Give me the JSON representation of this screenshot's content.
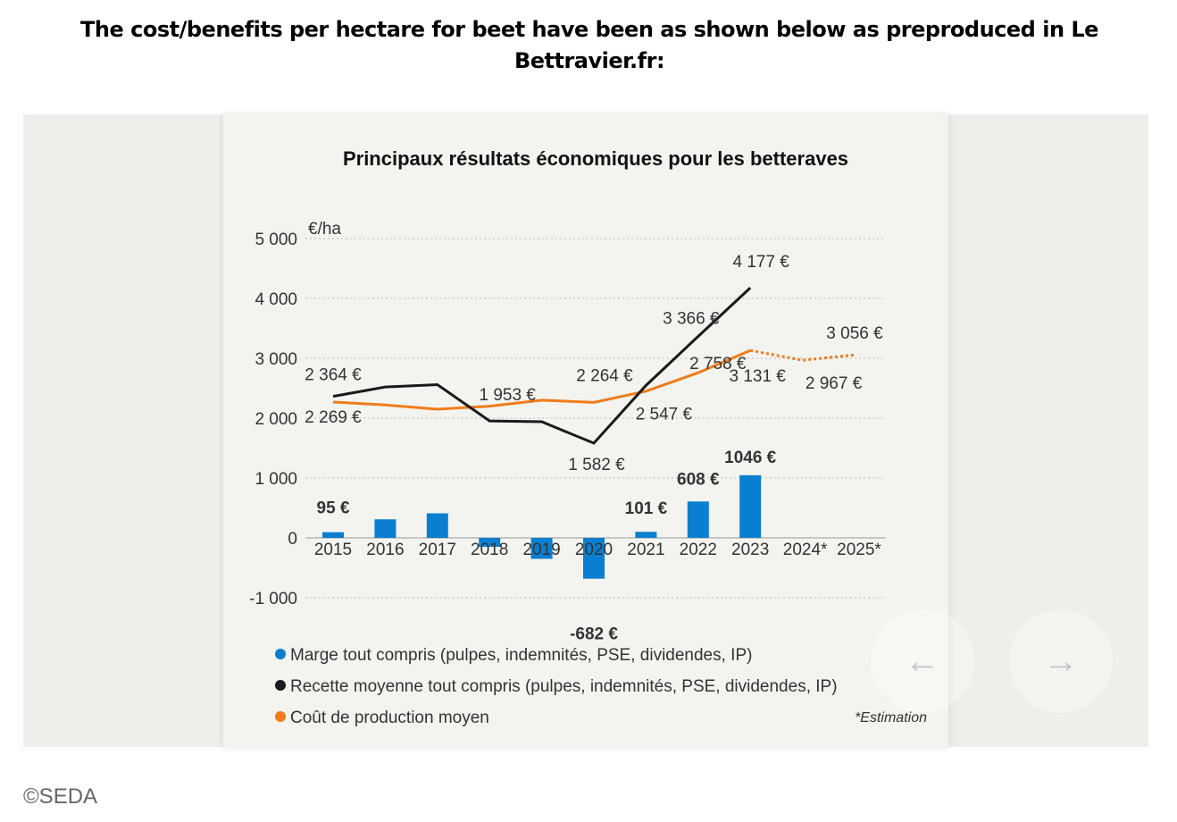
{
  "heading": "The cost/benefits per hectare for beet have been as shown below as preproduced in Le Bettravier.fr:",
  "credit": "©SEDA",
  "nav": {
    "prev_icon": "arrow-left-icon",
    "next_icon": "arrow-right-icon",
    "prev": "←",
    "next": "→"
  },
  "chart_data": {
    "type": "bar+line",
    "title": "Principaux résultats économiques pour les betteraves",
    "ylabel": "€/ha",
    "ylim": [
      -1000,
      5000
    ],
    "yticks": [
      5000,
      4000,
      3000,
      2000,
      1000,
      0,
      -1000
    ],
    "ytick_labels": [
      "5 000",
      "4 000",
      "3 000",
      "2 000",
      "1 000",
      "0",
      "-1 000"
    ],
    "categories": [
      "2015",
      "2016",
      "2017",
      "2018",
      "2019",
      "2020",
      "2021",
      "2022",
      "2023",
      "2024*",
      "2025*"
    ],
    "grid": true,
    "series": [
      {
        "name": "Marge tout compris (pulpes, indemnités, PSE, dividendes, IP)",
        "type": "bar",
        "color": "#0a7fd1",
        "values": [
          95,
          310,
          410,
          -150,
          -350,
          -682,
          101,
          608,
          1046,
          null,
          null
        ],
        "labels": [
          "95 €",
          null,
          null,
          null,
          null,
          "-682 €",
          "101 €",
          "608 €",
          "1046 €",
          null,
          null
        ]
      },
      {
        "name": "Recette moyenne tout compris (pulpes, indemnités, PSE, dividendes, IP)",
        "type": "line",
        "color": "#1a1a1a",
        "values": [
          2364,
          2520,
          2560,
          1953,
          1940,
          1582,
          2547,
          3366,
          4177,
          null,
          null
        ],
        "labels": [
          "2 364 €",
          null,
          null,
          "1 953 €",
          null,
          "1 582 €",
          "2 547 €",
          "3 366 €",
          "4 177 €",
          null,
          null
        ]
      },
      {
        "name": "Coût de production moyen",
        "type": "line",
        "color": "#f07c1a",
        "values": [
          2269,
          2220,
          2150,
          2200,
          2300,
          2264,
          2450,
          2758,
          3131,
          2967,
          3056
        ],
        "labels": [
          "2 269 €",
          null,
          null,
          null,
          null,
          "2 264 €",
          null,
          "2 758 €",
          "3 131 €",
          "2 967 €",
          "3 056 €"
        ],
        "estimated_from": "2024*"
      }
    ],
    "legend_placement": "bottom-left",
    "footnote": "*Estimation"
  }
}
